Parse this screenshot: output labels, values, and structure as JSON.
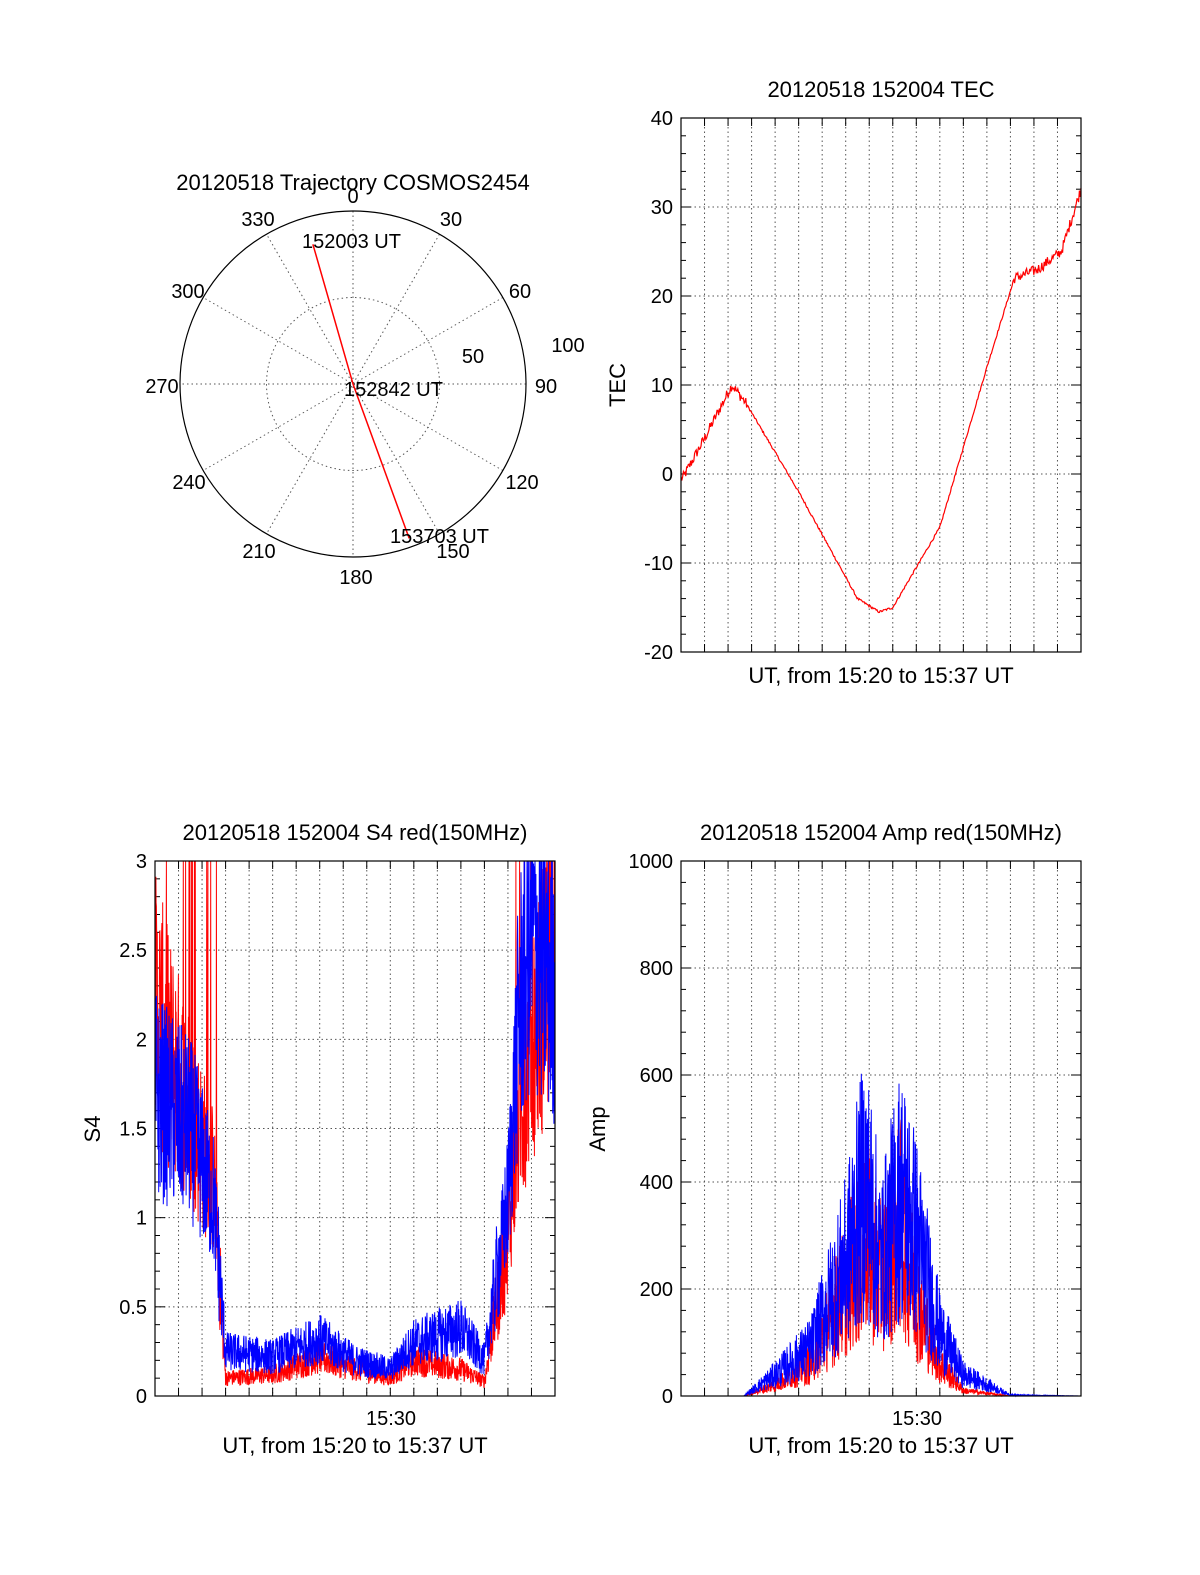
{
  "colors": {
    "red": "#ff0000",
    "blue": "#0000ff",
    "axis": "#000000",
    "grid": "#555555"
  },
  "chart_data": [
    {
      "id": "trajectory",
      "type": "polar",
      "title": "20120518 Trajectory COSMOS2454",
      "azimuth_labels": [
        "0",
        "30",
        "60",
        "90",
        "120",
        "150",
        "180",
        "210",
        "240",
        "270",
        "300",
        "330"
      ],
      "radial_labels": [
        "50",
        "100"
      ],
      "radial_range": [
        0,
        100
      ],
      "grid": true,
      "series": [
        {
          "color": "#ff0000",
          "points": [
            {
              "az": 344,
              "r": 84
            },
            {
              "az": 180,
              "r": 0
            },
            {
              "az": 160,
              "r": 95
            }
          ]
        }
      ],
      "annotations": [
        "152003 UT",
        "152842 UT",
        "153703 UT"
      ]
    },
    {
      "id": "tec",
      "type": "line",
      "title": "20120518 152004 TEC",
      "xlabel": "UT, from 15:20 to 15:37 UT",
      "ylabel": "TEC",
      "xlim": [
        "15:20",
        "15:37"
      ],
      "ylim": [
        -20,
        40
      ],
      "yticks": [
        "40",
        "30",
        "20",
        "10",
        "0",
        "-10",
        "-20"
      ],
      "grid": true,
      "series": [
        {
          "color": "#ff0000",
          "x": [
            "15:20:04",
            "15:21:00",
            "15:22:10",
            "15:22:45",
            "15:25:00",
            "15:27:30",
            "15:28:25",
            "15:29:00",
            "15:31:00",
            "15:33:00",
            "15:34:10",
            "15:35:10",
            "15:36:10",
            "15:37:00"
          ],
          "y": [
            -0.5,
            4,
            10,
            8,
            -2,
            -14,
            -15.5,
            -15,
            -6,
            12,
            22,
            23,
            25,
            32
          ]
        }
      ]
    },
    {
      "id": "s4",
      "type": "line",
      "title": "20120518 152004 S4 red(150MHz)",
      "xlabel": "UT, from 15:20 to 15:37 UT",
      "ylabel": "S4",
      "xlim": [
        "15:20",
        "15:37"
      ],
      "ylim": [
        0,
        3
      ],
      "yticks": [
        "3",
        "2.5",
        "2",
        "1.5",
        "1",
        "0.5",
        "0"
      ],
      "xticks": [
        "15:30"
      ],
      "grid": true,
      "series": [
        {
          "color": "#ff0000",
          "x": [
            "15:20",
            "15:20:40",
            "15:21:30",
            "15:22:30",
            "15:23:00",
            "15:25:00",
            "15:27:00",
            "15:28:30",
            "15:30:00",
            "15:31:00",
            "15:33:00",
            "15:34:00",
            "15:35:00",
            "15:35:30",
            "15:36:00",
            "15:37:00"
          ],
          "y": [
            2.2,
            1.9,
            1.6,
            1.2,
            0.1,
            0.12,
            0.22,
            0.15,
            0.1,
            0.2,
            0.15,
            0.08,
            0.9,
            1.6,
            2.0,
            2.5
          ]
        },
        {
          "color": "#0000ff",
          "x": [
            "15:20",
            "15:20:40",
            "15:21:30",
            "15:22:30",
            "15:23:00",
            "15:25:00",
            "15:27:00",
            "15:28:30",
            "15:30:00",
            "15:31:00",
            "15:33:00",
            "15:34:00",
            "15:35:00",
            "15:35:30",
            "15:36:00",
            "15:37:00"
          ],
          "y": [
            1.7,
            1.6,
            1.5,
            1.1,
            0.25,
            0.22,
            0.32,
            0.2,
            0.15,
            0.3,
            0.38,
            0.2,
            1.1,
            2.2,
            2.6,
            2.3
          ]
        }
      ]
    },
    {
      "id": "amp",
      "type": "line",
      "title": "20120518 152004 Amp red(150MHz)",
      "xlabel": "UT, from 15:20 to 15:37 UT",
      "ylabel": "Amp",
      "xlim": [
        "15:20",
        "15:37"
      ],
      "ylim": [
        0,
        1000
      ],
      "yticks": [
        "1000",
        "800",
        "600",
        "400",
        "200",
        "0"
      ],
      "xticks": [
        "15:30"
      ],
      "grid": true,
      "series": [
        {
          "color": "#ff0000",
          "x": [
            "15:20",
            "15:22:40",
            "15:24:00",
            "15:25:30",
            "15:27:00",
            "15:27:50",
            "15:28:30",
            "15:29:20",
            "15:30:00",
            "15:31:00",
            "15:32:00",
            "15:34:00",
            "15:37:00"
          ],
          "y": [
            0,
            0,
            20,
            60,
            200,
            300,
            220,
            320,
            180,
            60,
            10,
            0,
            0
          ]
        },
        {
          "color": "#0000ff",
          "x": [
            "15:20",
            "15:22:40",
            "15:24:00",
            "15:25:30",
            "15:27:00",
            "15:27:50",
            "15:28:30",
            "15:29:20",
            "15:30:00",
            "15:31:00",
            "15:32:00",
            "15:34:00",
            "15:37:00"
          ],
          "y": [
            0,
            0,
            40,
            90,
            250,
            400,
            250,
            380,
            300,
            120,
            40,
            2,
            0
          ]
        }
      ]
    }
  ]
}
